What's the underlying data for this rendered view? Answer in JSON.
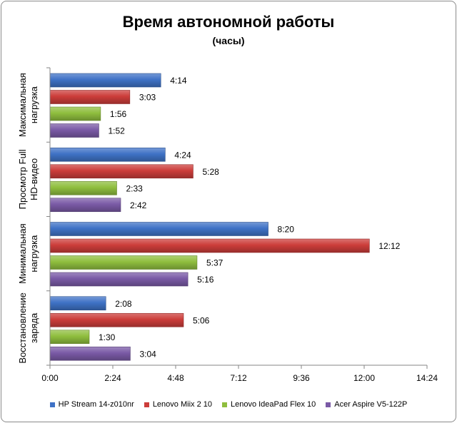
{
  "chart_data": {
    "type": "bar",
    "orientation": "horizontal",
    "title": "Время автономной работы",
    "subtitle": "(часы)",
    "categories": [
      "Максимальная нагрузка",
      "Просмотр Full HD-видео",
      "Минимальная нагрузка",
      "Восстановление заряда"
    ],
    "category_label_lines": [
      [
        "Максимальная",
        "нагрузка"
      ],
      [
        "Просмотр Full",
        "HD-видео"
      ],
      [
        "Минимальная",
        "нагрузка"
      ],
      [
        "Восстановление",
        "заряда"
      ]
    ],
    "x_ticks": [
      "0:00",
      "2:24",
      "4:48",
      "7:12",
      "9:36",
      "12:00",
      "14:24"
    ],
    "xlim_minutes": [
      0,
      864
    ],
    "x_tick_step_minutes": 144,
    "grid": false,
    "legend_position": "bottom",
    "series": [
      {
        "name": "HP Stream 14-z010nr",
        "color": "#3f72c6",
        "values_minutes": [
          254,
          264,
          500,
          128
        ],
        "labels": [
          "4:14",
          "4:24",
          "8:20",
          "2:08"
        ]
      },
      {
        "name": "Lenovo Miix 2 10",
        "color": "#cc3d3a",
        "values_minutes": [
          183,
          328,
          732,
          306
        ],
        "labels": [
          "3:03",
          "5:28",
          "12:12",
          "5:06"
        ]
      },
      {
        "name": "Lenovo IdeaPad Flex 10",
        "color": "#8fbe3e",
        "values_minutes": [
          116,
          153,
          337,
          90
        ],
        "labels": [
          "1:56",
          "2:33",
          "5:37",
          "1:30"
        ]
      },
      {
        "name": "Acer Aspire V5-122P",
        "color": "#7a5aa6",
        "values_minutes": [
          112,
          162,
          316,
          184
        ],
        "labels": [
          "1:52",
          "2:42",
          "5:16",
          "3:04"
        ]
      }
    ]
  }
}
